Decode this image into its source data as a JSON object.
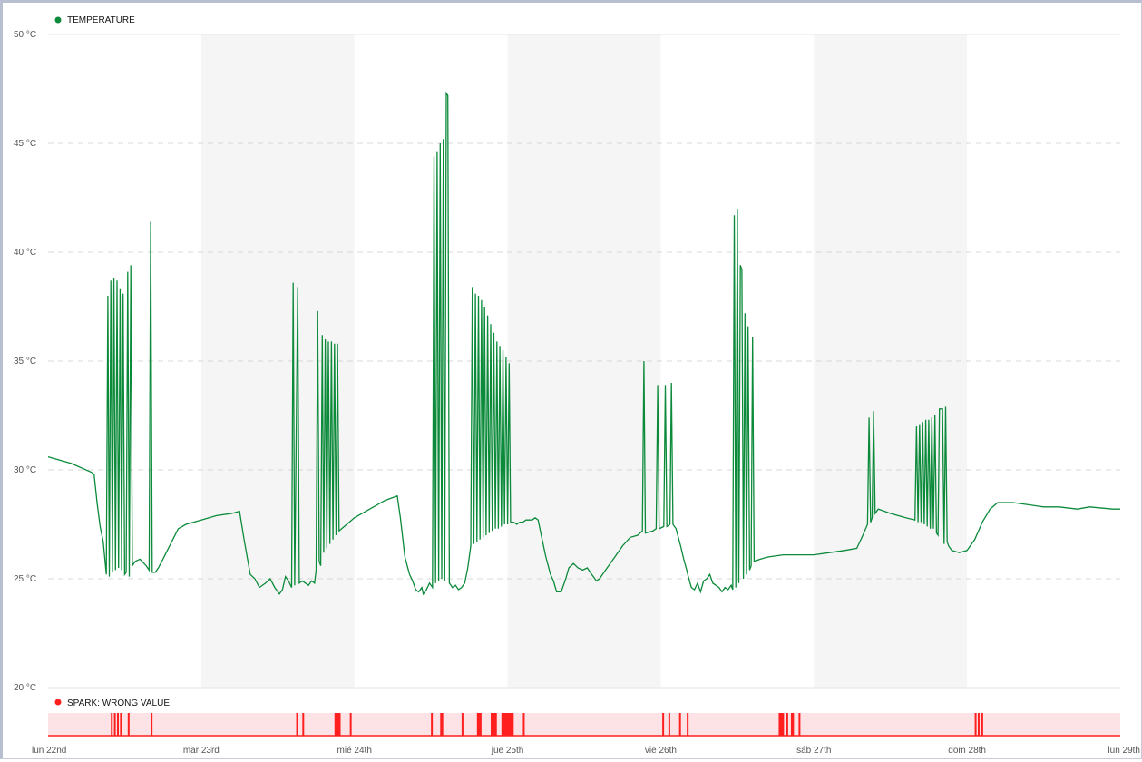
{
  "chart_data": {
    "type": "line",
    "legend": [
      {
        "label": "TEMPERATURE",
        "color": "#0b8a3a"
      },
      {
        "label": "SPARK: WRONG VALUE",
        "color": "#ff1f1f"
      }
    ],
    "y_axis": {
      "range": [
        20,
        50
      ],
      "ticks": [
        20,
        25,
        30,
        35,
        40,
        45,
        50
      ],
      "tick_labels": [
        "20 °C",
        "25 °C",
        "30 °C",
        "35 °C",
        "40 °C",
        "45 °C",
        "50 °C"
      ],
      "grid": "dashed"
    },
    "x_axis": {
      "range": [
        0,
        7
      ],
      "unit": "days",
      "ticks": [
        0,
        1,
        2,
        3,
        4,
        5,
        6,
        7
      ],
      "tick_labels": [
        "lun 22nd",
        "mar 23rd",
        "mié 24th",
        "jue 25th",
        "vie 26th",
        "sáb 27th",
        "dom 28th",
        "lun 29th"
      ]
    },
    "shaded_days": [
      [
        1,
        2
      ],
      [
        3,
        4
      ],
      [
        5,
        6
      ]
    ],
    "series": [
      {
        "name": "TEMPERATURE",
        "color": "#0b8a3a",
        "points": [
          [
            0.0,
            30.6
          ],
          [
            0.15,
            30.3
          ],
          [
            0.28,
            29.9
          ],
          [
            0.3,
            29.8
          ],
          [
            0.32,
            28.5
          ],
          [
            0.34,
            27.4
          ],
          [
            0.36,
            26.7
          ],
          [
            0.38,
            25.2
          ],
          [
            0.39,
            38.0
          ],
          [
            0.4,
            25.1
          ],
          [
            0.41,
            38.7
          ],
          [
            0.42,
            25.3
          ],
          [
            0.43,
            38.8
          ],
          [
            0.44,
            25.4
          ],
          [
            0.45,
            38.7
          ],
          [
            0.46,
            25.5
          ],
          [
            0.47,
            38.3
          ],
          [
            0.48,
            25.4
          ],
          [
            0.49,
            38.1
          ],
          [
            0.5,
            25.2
          ],
          [
            0.51,
            25.3
          ],
          [
            0.52,
            39.1
          ],
          [
            0.53,
            25.1
          ],
          [
            0.54,
            39.4
          ],
          [
            0.55,
            25.6
          ],
          [
            0.57,
            25.8
          ],
          [
            0.6,
            25.9
          ],
          [
            0.64,
            25.6
          ],
          [
            0.66,
            25.4
          ],
          [
            0.67,
            41.4
          ],
          [
            0.68,
            25.3
          ],
          [
            0.7,
            25.3
          ],
          [
            0.72,
            25.5
          ],
          [
            0.75,
            25.9
          ],
          [
            0.8,
            26.6
          ],
          [
            0.85,
            27.3
          ],
          [
            0.9,
            27.5
          ],
          [
            1.0,
            27.7
          ],
          [
            1.1,
            27.9
          ],
          [
            1.2,
            28.0
          ],
          [
            1.25,
            28.1
          ],
          [
            1.28,
            26.8
          ],
          [
            1.32,
            25.2
          ],
          [
            1.35,
            25.0
          ],
          [
            1.38,
            24.6
          ],
          [
            1.42,
            24.8
          ],
          [
            1.45,
            25.0
          ],
          [
            1.48,
            24.6
          ],
          [
            1.51,
            24.3
          ],
          [
            1.53,
            24.5
          ],
          [
            1.55,
            25.1
          ],
          [
            1.57,
            24.9
          ],
          [
            1.59,
            24.6
          ],
          [
            1.6,
            38.6
          ],
          [
            1.61,
            24.7
          ],
          [
            1.63,
            38.4
          ],
          [
            1.64,
            24.8
          ],
          [
            1.66,
            24.9
          ],
          [
            1.68,
            24.8
          ],
          [
            1.7,
            24.7
          ],
          [
            1.72,
            24.9
          ],
          [
            1.74,
            24.8
          ],
          [
            1.75,
            25.4
          ],
          [
            1.76,
            37.3
          ],
          [
            1.77,
            25.8
          ],
          [
            1.78,
            25.6
          ],
          [
            1.79,
            36.2
          ],
          [
            1.8,
            26.2
          ],
          [
            1.81,
            36.0
          ],
          [
            1.82,
            26.4
          ],
          [
            1.83,
            35.9
          ],
          [
            1.84,
            26.6
          ],
          [
            1.85,
            35.9
          ],
          [
            1.86,
            26.8
          ],
          [
            1.87,
            35.8
          ],
          [
            1.88,
            27.0
          ],
          [
            1.89,
            35.8
          ],
          [
            1.9,
            27.2
          ],
          [
            1.95,
            27.5
          ],
          [
            2.0,
            27.8
          ],
          [
            2.1,
            28.2
          ],
          [
            2.2,
            28.6
          ],
          [
            2.28,
            28.8
          ],
          [
            2.3,
            27.8
          ],
          [
            2.33,
            26.0
          ],
          [
            2.36,
            25.2
          ],
          [
            2.38,
            24.9
          ],
          [
            2.4,
            24.5
          ],
          [
            2.42,
            24.4
          ],
          [
            2.44,
            24.6
          ],
          [
            2.45,
            24.3
          ],
          [
            2.47,
            24.5
          ],
          [
            2.49,
            24.8
          ],
          [
            2.51,
            24.6
          ],
          [
            2.52,
            44.4
          ],
          [
            2.53,
            24.8
          ],
          [
            2.54,
            44.6
          ],
          [
            2.55,
            24.9
          ],
          [
            2.56,
            45.0
          ],
          [
            2.57,
            25.0
          ],
          [
            2.58,
            45.2
          ],
          [
            2.59,
            24.9
          ],
          [
            2.6,
            47.3
          ],
          [
            2.61,
            47.2
          ],
          [
            2.62,
            24.8
          ],
          [
            2.64,
            24.6
          ],
          [
            2.66,
            24.7
          ],
          [
            2.68,
            24.5
          ],
          [
            2.7,
            24.6
          ],
          [
            2.72,
            24.8
          ],
          [
            2.74,
            25.5
          ],
          [
            2.76,
            26.5
          ],
          [
            2.77,
            38.4
          ],
          [
            2.78,
            26.6
          ],
          [
            2.79,
            38.1
          ],
          [
            2.8,
            26.7
          ],
          [
            2.81,
            38.0
          ],
          [
            2.82,
            26.8
          ],
          [
            2.83,
            37.8
          ],
          [
            2.84,
            26.9
          ],
          [
            2.85,
            37.5
          ],
          [
            2.86,
            27.0
          ],
          [
            2.87,
            37.1
          ],
          [
            2.88,
            27.1
          ],
          [
            2.89,
            36.7
          ],
          [
            2.9,
            27.2
          ],
          [
            2.91,
            36.3
          ],
          [
            2.92,
            27.3
          ],
          [
            2.93,
            35.9
          ],
          [
            2.94,
            27.3
          ],
          [
            2.95,
            35.7
          ],
          [
            2.96,
            27.4
          ],
          [
            2.97,
            35.5
          ],
          [
            2.98,
            27.5
          ],
          [
            2.99,
            35.2
          ],
          [
            3.0,
            27.5
          ],
          [
            3.01,
            34.9
          ],
          [
            3.02,
            27.6
          ],
          [
            3.04,
            27.6
          ],
          [
            3.06,
            27.5
          ],
          [
            3.08,
            27.6
          ],
          [
            3.1,
            27.6
          ],
          [
            3.12,
            27.7
          ],
          [
            3.14,
            27.7
          ],
          [
            3.16,
            27.7
          ],
          [
            3.18,
            27.8
          ],
          [
            3.2,
            27.7
          ],
          [
            3.22,
            27.0
          ],
          [
            3.25,
            26.0
          ],
          [
            3.28,
            25.2
          ],
          [
            3.3,
            24.9
          ],
          [
            3.32,
            24.4
          ],
          [
            3.35,
            24.4
          ],
          [
            3.38,
            25.0
          ],
          [
            3.4,
            25.5
          ],
          [
            3.43,
            25.7
          ],
          [
            3.46,
            25.5
          ],
          [
            3.49,
            25.4
          ],
          [
            3.52,
            25.5
          ],
          [
            3.55,
            25.2
          ],
          [
            3.58,
            24.9
          ],
          [
            3.6,
            25.0
          ],
          [
            3.65,
            25.5
          ],
          [
            3.7,
            26.0
          ],
          [
            3.75,
            26.5
          ],
          [
            3.8,
            26.9
          ],
          [
            3.85,
            27.0
          ],
          [
            3.88,
            27.2
          ],
          [
            3.89,
            35.0
          ],
          [
            3.9,
            27.1
          ],
          [
            3.95,
            27.2
          ],
          [
            3.97,
            27.3
          ],
          [
            3.98,
            33.9
          ],
          [
            3.99,
            27.3
          ],
          [
            4.02,
            27.4
          ],
          [
            4.03,
            33.9
          ],
          [
            4.04,
            27.4
          ],
          [
            4.06,
            27.5
          ],
          [
            4.07,
            34.0
          ],
          [
            4.08,
            27.5
          ],
          [
            4.1,
            27.3
          ],
          [
            4.13,
            26.5
          ],
          [
            4.15,
            25.9
          ],
          [
            4.17,
            25.4
          ],
          [
            4.18,
            25.1
          ],
          [
            4.2,
            24.6
          ],
          [
            4.22,
            24.5
          ],
          [
            4.24,
            24.8
          ],
          [
            4.26,
            24.4
          ],
          [
            4.28,
            24.9
          ],
          [
            4.3,
            25.0
          ],
          [
            4.32,
            25.2
          ],
          [
            4.34,
            24.8
          ],
          [
            4.36,
            24.7
          ],
          [
            4.38,
            24.6
          ],
          [
            4.4,
            24.4
          ],
          [
            4.42,
            24.6
          ],
          [
            4.44,
            24.5
          ],
          [
            4.46,
            24.7
          ],
          [
            4.47,
            24.5
          ],
          [
            4.48,
            41.7
          ],
          [
            4.49,
            24.6
          ],
          [
            4.5,
            42.0
          ],
          [
            4.51,
            24.8
          ],
          [
            4.52,
            39.4
          ],
          [
            4.53,
            39.2
          ],
          [
            4.54,
            25.0
          ],
          [
            4.55,
            37.2
          ],
          [
            4.56,
            25.2
          ],
          [
            4.57,
            36.6
          ],
          [
            4.58,
            25.4
          ],
          [
            4.59,
            25.6
          ],
          [
            4.6,
            36.1
          ],
          [
            4.61,
            25.8
          ],
          [
            4.65,
            25.9
          ],
          [
            4.7,
            26.0
          ],
          [
            4.8,
            26.1
          ],
          [
            4.9,
            26.1
          ],
          [
            5.0,
            26.1
          ],
          [
            5.1,
            26.2
          ],
          [
            5.2,
            26.3
          ],
          [
            5.28,
            26.4
          ],
          [
            5.32,
            27.0
          ],
          [
            5.35,
            27.5
          ],
          [
            5.36,
            32.4
          ],
          [
            5.37,
            27.6
          ],
          [
            5.38,
            27.8
          ],
          [
            5.39,
            32.7
          ],
          [
            5.4,
            28.0
          ],
          [
            5.42,
            28.2
          ],
          [
            5.5,
            28.0
          ],
          [
            5.6,
            27.8
          ],
          [
            5.66,
            27.7
          ],
          [
            5.67,
            32.0
          ],
          [
            5.68,
            27.6
          ],
          [
            5.69,
            32.1
          ],
          [
            5.7,
            27.6
          ],
          [
            5.71,
            32.2
          ],
          [
            5.72,
            27.5
          ],
          [
            5.73,
            32.3
          ],
          [
            5.74,
            27.4
          ],
          [
            5.75,
            32.3
          ],
          [
            5.76,
            27.3
          ],
          [
            5.77,
            32.4
          ],
          [
            5.78,
            27.3
          ],
          [
            5.79,
            32.5
          ],
          [
            5.8,
            27.1
          ],
          [
            5.81,
            27.0
          ],
          [
            5.82,
            32.8
          ],
          [
            5.84,
            32.8
          ],
          [
            5.85,
            26.6
          ],
          [
            5.86,
            32.9
          ],
          [
            5.87,
            26.7
          ],
          [
            5.88,
            26.5
          ],
          [
            5.9,
            26.3
          ],
          [
            5.95,
            26.2
          ],
          [
            6.0,
            26.3
          ],
          [
            6.05,
            26.8
          ],
          [
            6.1,
            27.6
          ],
          [
            6.15,
            28.2
          ],
          [
            6.2,
            28.5
          ],
          [
            6.3,
            28.5
          ],
          [
            6.4,
            28.4
          ],
          [
            6.5,
            28.3
          ],
          [
            6.6,
            28.3
          ],
          [
            6.72,
            28.2
          ],
          [
            6.8,
            28.3
          ],
          [
            6.95,
            28.2
          ],
          [
            7.0,
            28.2
          ]
        ]
      }
    ],
    "spark": {
      "name": "SPARK: WRONG VALUE",
      "color": "#ff1f1f",
      "band_color": "#fde3e5",
      "events": [
        [
          0.41,
          0.005
        ],
        [
          0.43,
          0.005
        ],
        [
          0.45,
          0.005
        ],
        [
          0.47,
          0.005
        ],
        [
          0.52,
          0.005
        ],
        [
          0.67,
          0.005
        ],
        [
          1.62,
          0.006
        ],
        [
          1.66,
          0.005
        ],
        [
          1.87,
          0.04
        ],
        [
          1.97,
          0.005
        ],
        [
          2.5,
          0.005
        ],
        [
          2.56,
          0.02
        ],
        [
          2.7,
          0.01
        ],
        [
          2.8,
          0.03
        ],
        [
          2.89,
          0.04
        ],
        [
          2.96,
          0.08
        ],
        [
          3.1,
          0.01
        ],
        [
          4.01,
          0.005
        ],
        [
          4.05,
          0.005
        ],
        [
          4.12,
          0.005
        ],
        [
          4.17,
          0.005
        ],
        [
          4.77,
          0.035
        ],
        [
          4.82,
          0.005
        ],
        [
          4.85,
          0.02
        ],
        [
          4.9,
          0.005
        ],
        [
          6.05,
          0.005
        ],
        [
          6.07,
          0.005
        ],
        [
          6.09,
          0.015
        ]
      ]
    }
  }
}
